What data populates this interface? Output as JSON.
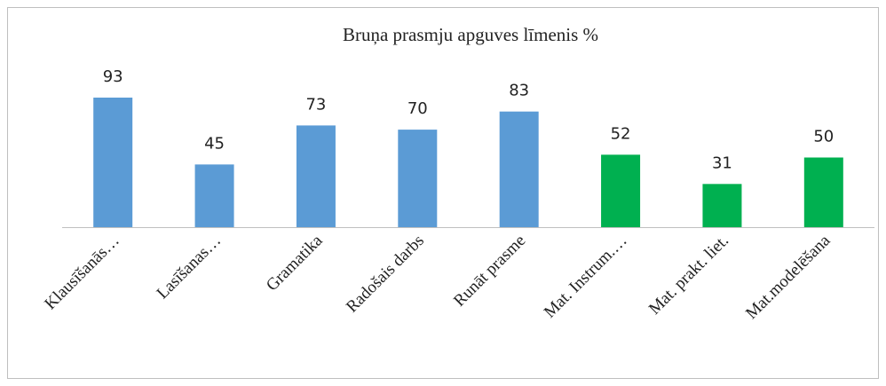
{
  "chart_data": {
    "type": "bar",
    "title": "Bruņa prasmju apguves līmenis %",
    "categories": [
      "Klausīšanās…",
      "Lasīšanas…",
      "Gramatika",
      "Radošais darbs",
      "Runāt prasme",
      "Mat. Instrum.…",
      "Mat. prakt. liet.",
      "Mat.modelēšana"
    ],
    "values": [
      93,
      45,
      73,
      70,
      83,
      52,
      31,
      50
    ],
    "colors": [
      "#5b9bd5",
      "#5b9bd5",
      "#5b9bd5",
      "#5b9bd5",
      "#5b9bd5",
      "#00b050",
      "#00b050",
      "#00b050"
    ],
    "ylim": [
      0,
      100
    ]
  }
}
